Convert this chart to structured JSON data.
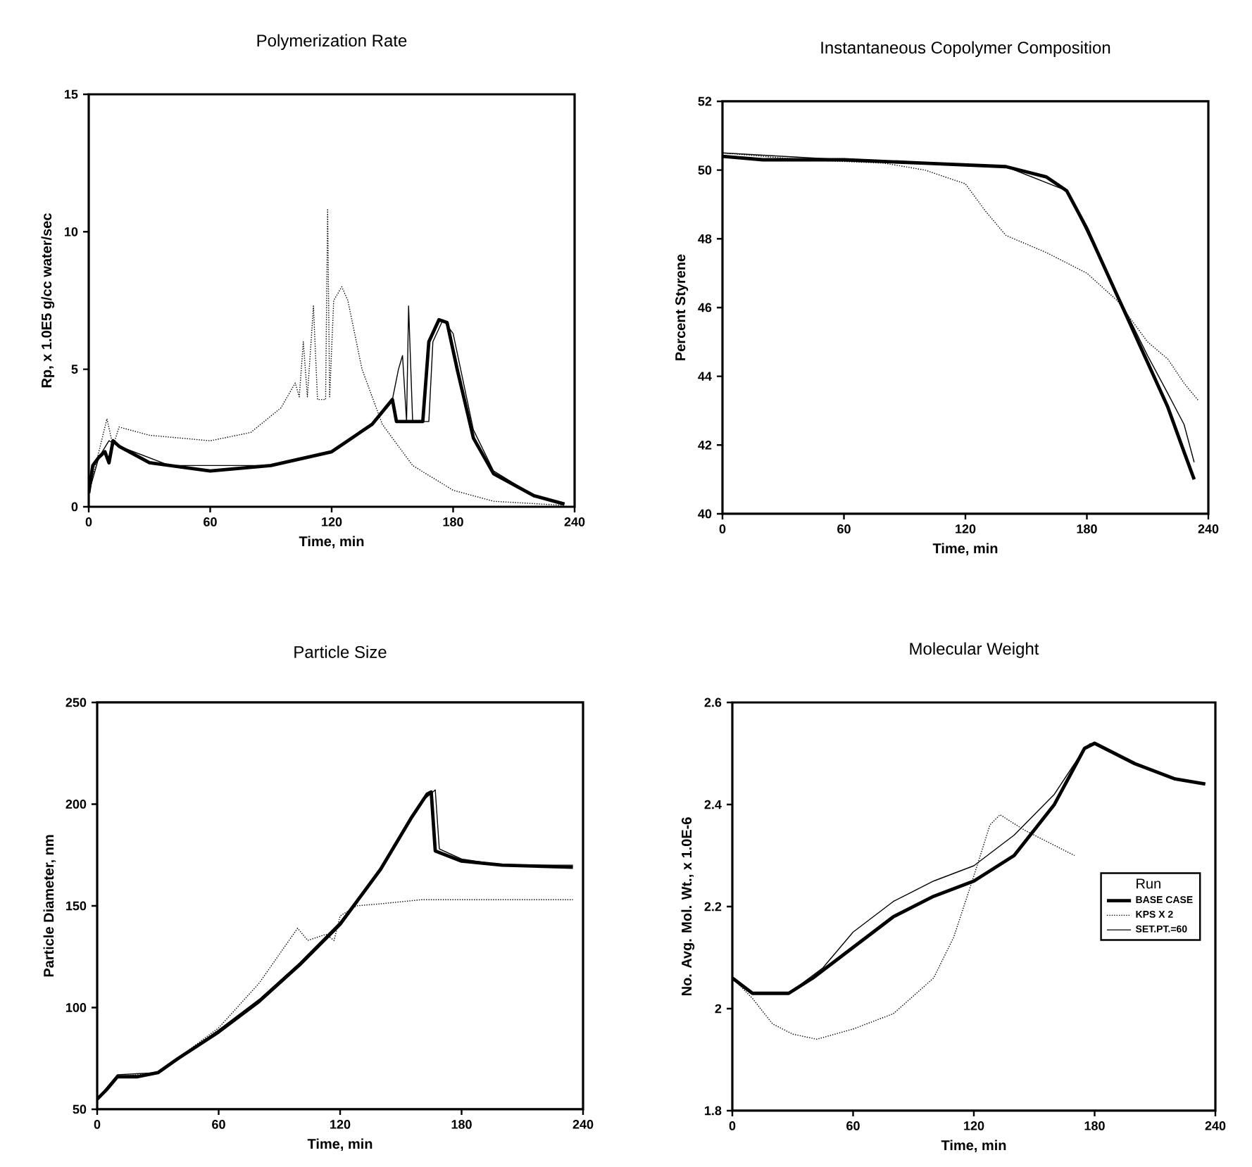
{
  "chart_data": [
    {
      "type": "line",
      "title": "Polymerization Rate",
      "xlabel": "Time, min",
      "ylabel": "Rp, x 1.0E5 g/cc water/sec",
      "xlim": [
        0,
        240
      ],
      "ylim": [
        0,
        15
      ],
      "xticks": [
        0,
        60,
        120,
        180,
        240
      ],
      "yticks": [
        0,
        5,
        10,
        15
      ],
      "series": [
        {
          "color": "#000000",
          "line_style": "solid",
          "x": [
            0,
            2,
            5,
            8,
            10,
            12,
            15,
            30,
            60,
            90,
            120,
            140,
            150,
            152,
            160,
            165,
            168,
            173,
            177,
            182,
            190,
            200,
            220,
            235
          ],
          "values": [
            0.5,
            1.5,
            1.8,
            2.0,
            1.6,
            2.4,
            2.2,
            1.6,
            1.3,
            1.5,
            2.0,
            3.0,
            3.9,
            3.1,
            3.1,
            3.1,
            6.0,
            6.8,
            6.7,
            5.0,
            2.5,
            1.2,
            0.4,
            0.1
          ]
        },
        {
          "color": "#000000",
          "line_style": "dotted",
          "x": [
            0,
            5,
            9,
            12,
            15,
            30,
            60,
            80,
            95,
            102,
            104,
            106,
            108,
            111,
            113,
            117,
            118,
            119,
            121,
            125,
            128,
            135,
            145,
            160,
            180,
            200,
            235
          ],
          "values": [
            0.5,
            2.0,
            3.2,
            2.2,
            2.9,
            2.6,
            2.4,
            2.7,
            3.6,
            4.5,
            4.0,
            6.0,
            4.0,
            7.3,
            3.9,
            3.9,
            10.8,
            4.0,
            7.5,
            8.0,
            7.5,
            5.0,
            3.0,
            1.5,
            0.6,
            0.2,
            0.05
          ]
        },
        {
          "color": "#000000",
          "line_style": "solid",
          "x": [
            0,
            5,
            10,
            15,
            40,
            90,
            120,
            140,
            150,
            153,
            155,
            157,
            158,
            160,
            168,
            170,
            175,
            180,
            190,
            200,
            220,
            235
          ],
          "values": [
            0.5,
            1.8,
            2.4,
            2.2,
            1.5,
            1.5,
            2.0,
            3.0,
            3.9,
            5.0,
            5.5,
            3.1,
            7.3,
            3.1,
            3.1,
            6.0,
            6.8,
            6.3,
            2.8,
            1.3,
            0.4,
            0.1
          ]
        }
      ]
    },
    {
      "type": "line",
      "title": "Instantaneous Copolymer Composition",
      "xlabel": "Time, min",
      "ylabel": "Percent Styrene",
      "xlim": [
        0,
        240
      ],
      "ylim": [
        40,
        52
      ],
      "xticks": [
        0,
        60,
        120,
        180,
        240
      ],
      "yticks": [
        40,
        42,
        44,
        46,
        48,
        50,
        52
      ],
      "series": [
        {
          "color": "#000000",
          "line_style": "solid",
          "x": [
            0,
            20,
            60,
            100,
            140,
            160,
            170,
            180,
            190,
            200,
            210,
            220,
            228,
            233
          ],
          "values": [
            50.4,
            50.3,
            50.3,
            50.2,
            50.1,
            49.8,
            49.4,
            48.3,
            47.0,
            45.7,
            44.4,
            43.1,
            41.8,
            41.0
          ]
        },
        {
          "color": "#000000",
          "line_style": "dotted",
          "x": [
            0,
            40,
            80,
            100,
            120,
            130,
            140,
            160,
            180,
            195,
            210,
            220,
            228,
            235
          ],
          "values": [
            50.5,
            50.3,
            50.2,
            50.0,
            49.6,
            48.8,
            48.1,
            47.6,
            47.0,
            46.2,
            45.0,
            44.5,
            43.8,
            43.3
          ]
        },
        {
          "color": "#000000",
          "line_style": "solid",
          "x": [
            0,
            60,
            140,
            170,
            180,
            200,
            210,
            220,
            228,
            233
          ],
          "values": [
            50.5,
            50.3,
            50.1,
            49.4,
            48.2,
            45.8,
            44.6,
            43.5,
            42.6,
            41.5
          ]
        }
      ]
    },
    {
      "type": "line",
      "title": "Particle Size",
      "xlabel": "Time, min",
      "ylabel": "Particle Diameter, nm",
      "xlim": [
        0,
        240
      ],
      "ylim": [
        50,
        250
      ],
      "xticks": [
        0,
        60,
        120,
        180,
        240
      ],
      "yticks": [
        50,
        100,
        150,
        200,
        250
      ],
      "series": [
        {
          "color": "#000000",
          "line_style": "solid",
          "x": [
            0,
            5,
            10,
            20,
            30,
            40,
            60,
            80,
            100,
            120,
            140,
            155,
            163,
            165,
            167,
            180,
            200,
            235
          ],
          "values": [
            55,
            60,
            66,
            66,
            68,
            75,
            88,
            103,
            121,
            141,
            168,
            193,
            205,
            206,
            177,
            172,
            170,
            169
          ]
        },
        {
          "color": "#000000",
          "line_style": "dotted",
          "x": [
            0,
            10,
            30,
            60,
            80,
            99,
            104,
            113,
            117,
            120,
            128,
            140,
            160,
            200,
            235
          ],
          "values": [
            55,
            66,
            68,
            90,
            112,
            139,
            133,
            136,
            133,
            145,
            150,
            151,
            153,
            153,
            153
          ]
        },
        {
          "color": "#000000",
          "line_style": "solid",
          "x": [
            0,
            10,
            30,
            60,
            80,
            100,
            120,
            140,
            160,
            167,
            169,
            180,
            200,
            235
          ],
          "values": [
            55,
            67,
            68,
            89,
            104,
            122,
            142,
            168,
            201,
            207,
            178,
            173,
            170,
            170
          ]
        }
      ]
    },
    {
      "type": "line",
      "title": "Molecular Weight",
      "xlabel": "Time, min",
      "ylabel": "No. Avg. Mol. Wt., x 1.0E-6",
      "xlim": [
        0,
        240
      ],
      "ylim": [
        1.8,
        2.6
      ],
      "xticks": [
        0,
        60,
        120,
        180,
        240
      ],
      "yticks": [
        1.8,
        2,
        2.2,
        2.4,
        2.6
      ],
      "legend": "right",
      "legend_title": "Run",
      "series": [
        {
          "name": "BASE CASE",
          "color": "#000000",
          "line_style": "solid",
          "x": [
            0,
            10,
            28,
            40,
            60,
            80,
            100,
            120,
            140,
            160,
            175,
            180,
            190,
            200,
            220,
            235
          ],
          "values": [
            2.06,
            2.03,
            2.03,
            2.06,
            2.12,
            2.18,
            2.22,
            2.25,
            2.3,
            2.4,
            2.51,
            2.52,
            2.5,
            2.48,
            2.45,
            2.44
          ]
        },
        {
          "name": "KPS X 2",
          "color": "#000000",
          "line_style": "dotted",
          "x": [
            0,
            10,
            20,
            30,
            42,
            60,
            80,
            100,
            110,
            120,
            128,
            133,
            145,
            160,
            170
          ],
          "values": [
            2.06,
            2.02,
            1.97,
            1.95,
            1.94,
            1.96,
            1.99,
            2.06,
            2.14,
            2.26,
            2.36,
            2.38,
            2.35,
            2.32,
            2.3
          ]
        },
        {
          "name": "SET.PT.=60",
          "color": "#000000",
          "line_style": "solid",
          "x": [
            0,
            10,
            28,
            45,
            60,
            80,
            100,
            120,
            140,
            160,
            175,
            178
          ],
          "values": [
            2.06,
            2.03,
            2.03,
            2.08,
            2.15,
            2.21,
            2.25,
            2.28,
            2.34,
            2.42,
            2.51,
            2.52
          ]
        }
      ]
    }
  ]
}
